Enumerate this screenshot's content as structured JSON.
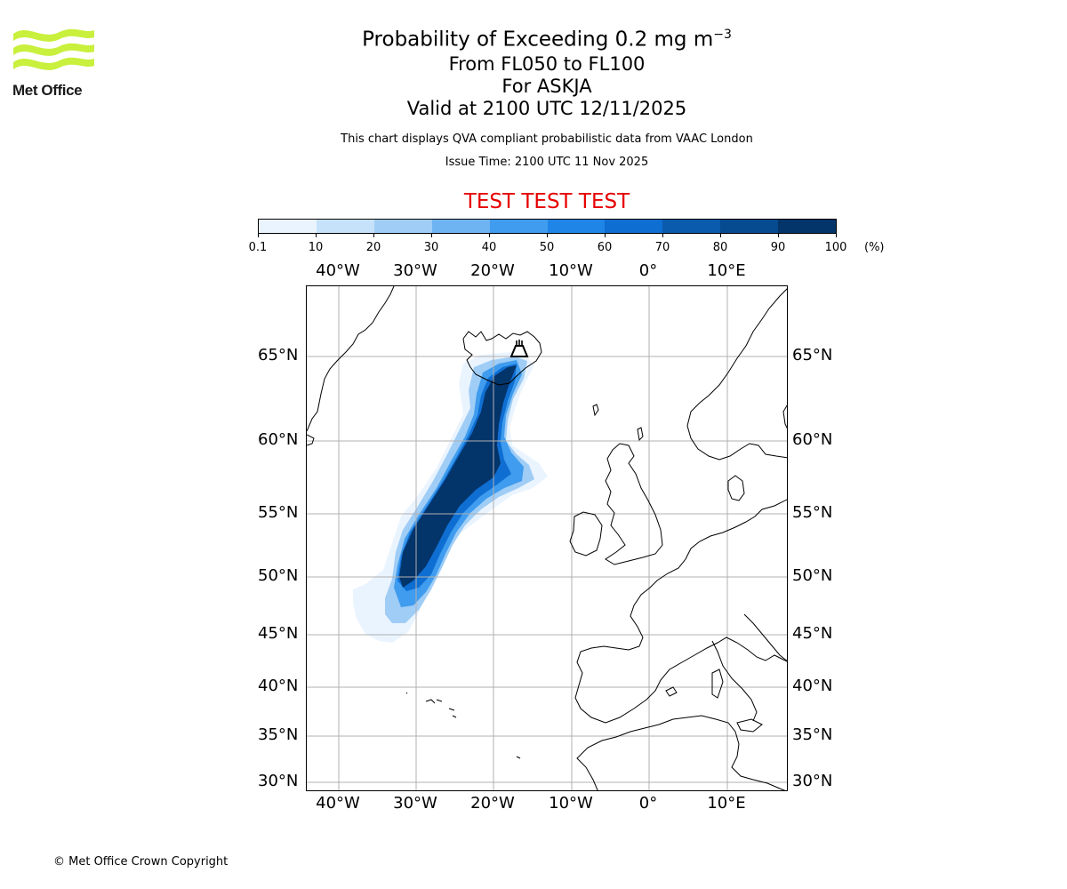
{
  "logo": {
    "text": "Met Office",
    "color": "#c8f03c"
  },
  "title": {
    "line1_main": "Probability of Exceeding 0.2 mg m",
    "line1_sup": "−3",
    "line2": "From FL050 to FL100",
    "line3": "For ASKJA",
    "line4": "Valid at 2100 UTC 12/11/2025"
  },
  "info": {
    "description": "This chart displays QVA compliant probabilistic data from VAAC London",
    "issue_time": "Issue Time: 2100 UTC 11 Nov 2025"
  },
  "test_banner": "TEST TEST TEST",
  "colorbar": {
    "ticks": [
      "0.1",
      "10",
      "20",
      "30",
      "40",
      "50",
      "60",
      "70",
      "80",
      "90",
      "100"
    ],
    "unit": "(%)",
    "colors": [
      "#eaf4ff",
      "#c6e2fb",
      "#9fcdf6",
      "#6eb4f2",
      "#3f9cee",
      "#1f86e8",
      "#0f6ed2",
      "#0a5aae",
      "#064a90",
      "#03346a"
    ]
  },
  "map": {
    "lon_labels": [
      "40°W",
      "30°W",
      "20°W",
      "10°W",
      "0°",
      "10°E"
    ],
    "lat_labels": [
      "65°N",
      "60°N",
      "55°N",
      "50°N",
      "45°N",
      "40°N",
      "35°N",
      "30°N"
    ],
    "volcano_icon": "volcano-icon",
    "colors": {
      "grid": "#b0b0b0",
      "coast": "#000000"
    }
  },
  "copyright": "© Met Office Crown Copyright"
}
